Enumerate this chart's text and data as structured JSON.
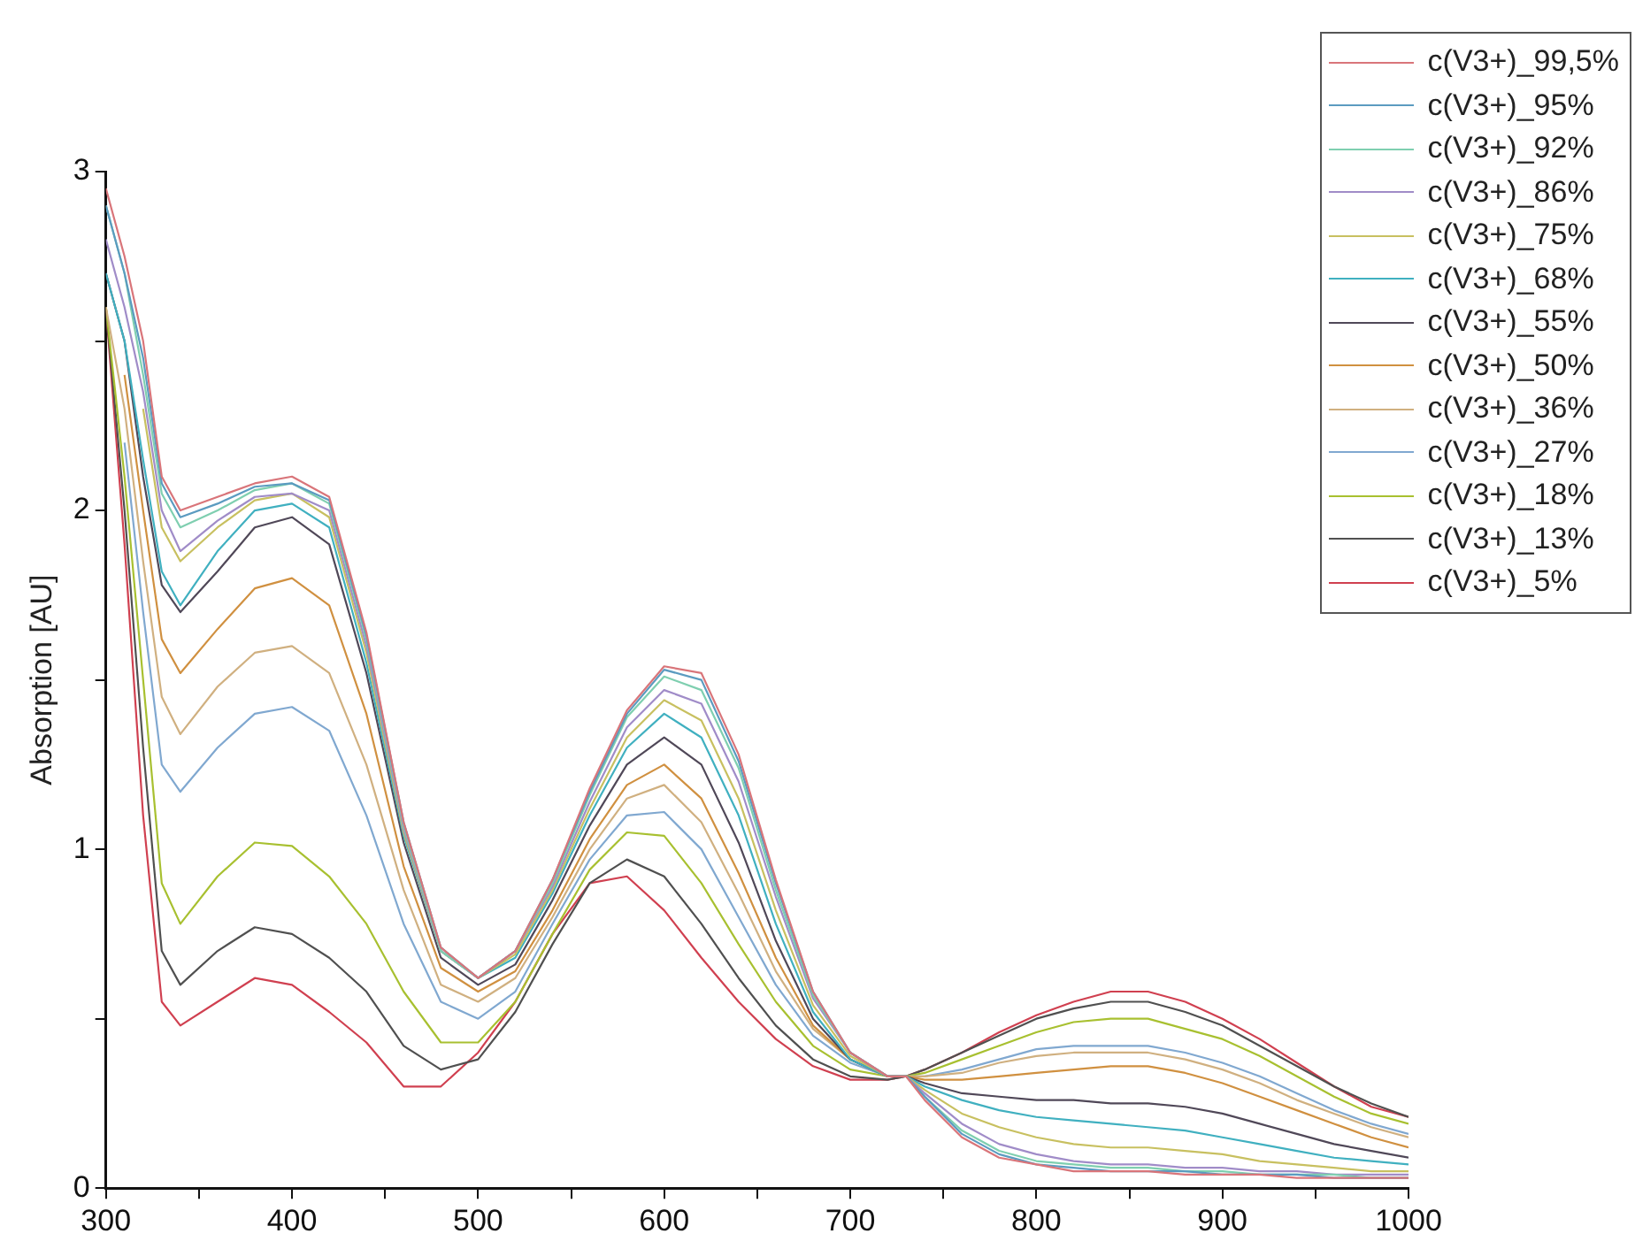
{
  "chart_data": {
    "type": "line",
    "ylabel": "Absorption [AU]",
    "x": [
      300,
      310,
      320,
      330,
      340,
      360,
      380,
      400,
      420,
      440,
      460,
      480,
      500,
      520,
      540,
      560,
      580,
      600,
      620,
      640,
      660,
      680,
      700,
      720,
      730,
      740,
      760,
      780,
      800,
      820,
      840,
      860,
      880,
      900,
      920,
      940,
      960,
      980,
      1000
    ],
    "xlim": [
      300,
      1000
    ],
    "xticks": [
      300,
      {
        "value": 350,
        "label": null
      },
      400,
      {
        "value": 450,
        "label": null
      },
      500,
      {
        "value": 550,
        "label": null
      },
      600,
      {
        "value": 650,
        "label": null
      },
      700,
      {
        "value": 750,
        "label": null
      },
      800,
      {
        "value": 850,
        "label": null
      },
      900,
      {
        "value": 950,
        "label": null
      },
      1000
    ],
    "ylim": [
      0,
      3
    ],
    "yticks": [
      0,
      {
        "value": 0.5,
        "label": null
      },
      1,
      {
        "value": 1.5,
        "label": null
      },
      2,
      {
        "value": 2.5,
        "label": null
      },
      3
    ],
    "grid": false,
    "legend": "top right",
    "marker": "none",
    "line_style": "solid",
    "series": [
      {
        "name": "c(V3+)_99,5%",
        "color": "#d9757a",
        "values": [
          2.95,
          2.75,
          2.5,
          2.1,
          2.0,
          2.04,
          2.08,
          2.1,
          2.04,
          1.64,
          1.08,
          0.71,
          0.62,
          0.7,
          0.91,
          1.18,
          1.41,
          1.54,
          1.52,
          1.28,
          0.91,
          0.58,
          0.4,
          0.33,
          0.33,
          0.26,
          0.15,
          0.09,
          0.07,
          0.05,
          0.05,
          0.05,
          0.04,
          0.04,
          0.04,
          0.03,
          0.03,
          0.03,
          0.03
        ]
      },
      {
        "name": "c(V3+)_95%",
        "color": "#5b9bc0",
        "values": [
          2.9,
          2.7,
          2.45,
          2.08,
          1.98,
          2.02,
          2.07,
          2.08,
          2.03,
          1.63,
          1.08,
          0.71,
          0.62,
          0.7,
          0.91,
          1.17,
          1.4,
          1.53,
          1.5,
          1.26,
          0.9,
          0.58,
          0.4,
          0.33,
          0.33,
          0.27,
          0.16,
          0.1,
          0.07,
          0.06,
          0.05,
          0.05,
          0.05,
          0.04,
          0.04,
          0.04,
          0.03,
          0.03,
          0.03
        ]
      },
      {
        "name": "c(V3+)_92%",
        "color": "#7fcfb0",
        "values": [
          2.9,
          2.7,
          2.4,
          2.05,
          1.95,
          2.0,
          2.06,
          2.08,
          2.02,
          1.62,
          1.07,
          0.7,
          0.62,
          0.7,
          0.9,
          1.16,
          1.39,
          1.51,
          1.47,
          1.24,
          0.88,
          0.57,
          0.4,
          0.33,
          0.33,
          0.27,
          0.17,
          0.11,
          0.08,
          0.07,
          0.06,
          0.06,
          0.05,
          0.05,
          0.04,
          0.04,
          0.04,
          0.03,
          0.03
        ]
      },
      {
        "name": "c(V3+)_86%",
        "color": "#a08cc8",
        "values": [
          2.8,
          2.6,
          2.35,
          2.0,
          1.88,
          1.97,
          2.04,
          2.05,
          2.0,
          1.6,
          1.06,
          0.7,
          0.62,
          0.7,
          0.89,
          1.14,
          1.36,
          1.47,
          1.43,
          1.2,
          0.86,
          0.56,
          0.4,
          0.33,
          0.33,
          0.28,
          0.19,
          0.13,
          0.1,
          0.08,
          0.07,
          0.07,
          0.06,
          0.06,
          0.05,
          0.05,
          0.04,
          0.04,
          0.04
        ]
      },
      {
        "name": "c(V3+)_75%",
        "color": "#c8c060",
        "values": [
          null,
          null,
          2.3,
          1.95,
          1.85,
          1.95,
          2.03,
          2.05,
          1.98,
          1.58,
          1.05,
          0.7,
          0.62,
          0.69,
          0.88,
          1.12,
          1.33,
          1.44,
          1.38,
          1.15,
          0.82,
          0.54,
          0.39,
          0.33,
          0.33,
          0.29,
          0.22,
          0.18,
          0.15,
          0.13,
          0.12,
          0.12,
          0.11,
          0.1,
          0.08,
          0.07,
          0.06,
          0.05,
          0.05
        ]
      },
      {
        "name": "c(V3+)_68%",
        "color": "#40b0c0",
        "values": [
          2.7,
          2.5,
          2.15,
          1.82,
          1.72,
          1.88,
          2.0,
          2.02,
          1.95,
          1.55,
          1.04,
          0.7,
          0.62,
          0.68,
          0.87,
          1.1,
          1.3,
          1.4,
          1.33,
          1.1,
          0.78,
          0.52,
          0.38,
          0.33,
          0.33,
          0.3,
          0.26,
          0.23,
          0.21,
          0.2,
          0.19,
          0.18,
          0.17,
          0.15,
          0.13,
          0.11,
          0.09,
          0.08,
          0.07
        ]
      },
      {
        "name": "c(V3+)_55%",
        "color": "#504858",
        "values": [
          2.7,
          2.5,
          2.1,
          1.78,
          1.7,
          1.82,
          1.95,
          1.98,
          1.9,
          1.52,
          1.02,
          0.68,
          0.6,
          0.66,
          0.85,
          1.07,
          1.25,
          1.33,
          1.25,
          1.02,
          0.73,
          0.5,
          0.38,
          0.33,
          0.33,
          0.31,
          0.28,
          0.27,
          0.26,
          0.26,
          0.25,
          0.25,
          0.24,
          0.22,
          0.19,
          0.16,
          0.13,
          0.11,
          0.09
        ]
      },
      {
        "name": "c(V3+)_50%",
        "color": "#d09040",
        "values": [
          null,
          2.4,
          2.0,
          1.62,
          1.52,
          1.65,
          1.77,
          1.8,
          1.72,
          1.4,
          0.95,
          0.65,
          0.58,
          0.64,
          0.82,
          1.03,
          1.19,
          1.25,
          1.15,
          0.93,
          0.68,
          0.48,
          0.38,
          0.33,
          0.33,
          0.32,
          0.32,
          0.33,
          0.34,
          0.35,
          0.36,
          0.36,
          0.34,
          0.31,
          0.27,
          0.23,
          0.19,
          0.15,
          0.12
        ]
      },
      {
        "name": "c(V3+)_36%",
        "color": "#d0b080",
        "values": [
          2.6,
          2.3,
          1.85,
          1.45,
          1.34,
          1.48,
          1.58,
          1.6,
          1.52,
          1.25,
          0.88,
          0.6,
          0.55,
          0.62,
          0.8,
          1.0,
          1.15,
          1.19,
          1.08,
          0.87,
          0.64,
          0.47,
          0.38,
          0.33,
          0.33,
          0.33,
          0.34,
          0.37,
          0.39,
          0.4,
          0.4,
          0.4,
          0.38,
          0.35,
          0.31,
          0.26,
          0.22,
          0.18,
          0.15
        ]
      },
      {
        "name": "c(V3+)_27%",
        "color": "#80a8d0",
        "values": [
          null,
          2.2,
          1.7,
          1.25,
          1.17,
          1.3,
          1.4,
          1.42,
          1.35,
          1.1,
          0.78,
          0.55,
          0.5,
          0.58,
          0.78,
          0.97,
          1.1,
          1.11,
          1.0,
          0.8,
          0.6,
          0.45,
          0.37,
          0.33,
          0.33,
          0.33,
          0.35,
          0.38,
          0.41,
          0.42,
          0.42,
          0.42,
          0.4,
          0.37,
          0.33,
          0.28,
          0.23,
          0.19,
          0.16
        ]
      },
      {
        "name": "c(V3+)_18%",
        "color": "#a8c030",
        "values": [
          2.6,
          2.1,
          1.5,
          0.9,
          0.78,
          0.92,
          1.02,
          1.01,
          0.92,
          0.78,
          0.58,
          0.43,
          0.43,
          0.55,
          0.75,
          0.94,
          1.05,
          1.04,
          0.9,
          0.72,
          0.55,
          0.42,
          0.35,
          0.33,
          0.33,
          0.34,
          0.38,
          0.42,
          0.46,
          0.49,
          0.5,
          0.5,
          0.47,
          0.44,
          0.39,
          0.33,
          0.27,
          0.22,
          0.19
        ]
      },
      {
        "name": "c(V3+)_13%",
        "color": "#505050",
        "values": [
          2.6,
          2.0,
          1.3,
          0.7,
          0.6,
          0.7,
          0.77,
          0.75,
          0.68,
          0.58,
          0.42,
          0.35,
          0.38,
          0.52,
          0.72,
          0.9,
          0.97,
          0.92,
          0.78,
          0.62,
          0.48,
          0.38,
          0.33,
          0.32,
          0.33,
          0.35,
          0.4,
          0.45,
          0.5,
          0.53,
          0.55,
          0.55,
          0.52,
          0.48,
          0.42,
          0.36,
          0.3,
          0.25,
          0.21
        ]
      },
      {
        "name": "c(V3+)_5%",
        "color": "#d04050",
        "values": [
          2.6,
          1.9,
          1.1,
          0.55,
          0.48,
          0.55,
          0.62,
          0.6,
          0.52,
          0.43,
          0.3,
          0.3,
          0.4,
          0.55,
          0.75,
          0.9,
          0.92,
          0.82,
          0.68,
          0.55,
          0.44,
          0.36,
          0.32,
          0.32,
          0.33,
          0.35,
          0.4,
          0.46,
          0.51,
          0.55,
          0.58,
          0.58,
          0.55,
          0.5,
          0.44,
          0.37,
          0.3,
          0.24,
          0.21
        ]
      }
    ]
  }
}
